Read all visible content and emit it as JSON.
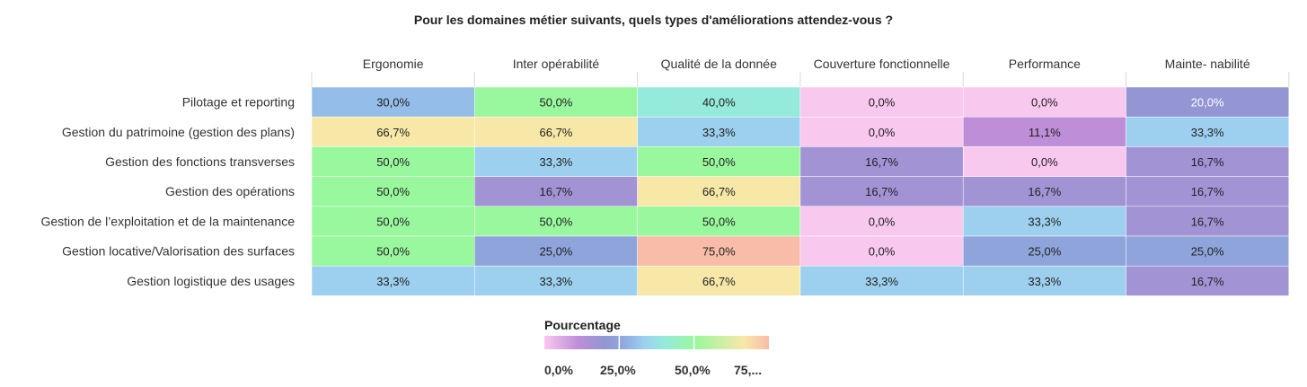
{
  "chart_data": {
    "type": "heatmap",
    "title": "Pour les domaines métier suivants, quels types d'améliorations attendez-vous ?",
    "columns": [
      "Ergonomie",
      "Inter opérabilité",
      "Qualité de la donnée",
      "Couverture fonctionnelle",
      "Performance",
      "Mainte- nabilité"
    ],
    "rows": [
      "Pilotage et reporting",
      "Gestion du patrimoine (gestion des plans)",
      "Gestion des fonctions transverses",
      "Gestion des opérations",
      "Gestion de l’exploitation et de la maintenance",
      "Gestion locative/Valorisation des surfaces",
      "Gestion logistique des usages"
    ],
    "values": [
      [
        30.0,
        50.0,
        40.0,
        0.0,
        0.0,
        20.0
      ],
      [
        66.7,
        66.7,
        33.3,
        0.0,
        11.1,
        33.3
      ],
      [
        50.0,
        33.3,
        50.0,
        16.7,
        0.0,
        16.7
      ],
      [
        50.0,
        16.7,
        66.7,
        16.7,
        16.7,
        16.7
      ],
      [
        50.0,
        50.0,
        50.0,
        0.0,
        33.3,
        16.7
      ],
      [
        50.0,
        25.0,
        75.0,
        0.0,
        25.0,
        25.0
      ],
      [
        33.3,
        33.3,
        66.7,
        33.3,
        33.3,
        16.7
      ]
    ],
    "value_labels": [
      [
        "30,0%",
        "50,0%",
        "40,0%",
        "0,0%",
        "0,0%",
        "20,0%"
      ],
      [
        "66,7%",
        "66,7%",
        "33,3%",
        "0,0%",
        "11,1%",
        "33,3%"
      ],
      [
        "50,0%",
        "33,3%",
        "50,0%",
        "16,7%",
        "0,0%",
        "16,7%"
      ],
      [
        "50,0%",
        "16,7%",
        "66,7%",
        "16,7%",
        "16,7%",
        "16,7%"
      ],
      [
        "50,0%",
        "50,0%",
        "50,0%",
        "0,0%",
        "33,3%",
        "16,7%"
      ],
      [
        "50,0%",
        "25,0%",
        "75,0%",
        "0,0%",
        "25,0%",
        "25,0%"
      ],
      [
        "33,3%",
        "33,3%",
        "66,7%",
        "33,3%",
        "33,3%",
        "16,7%"
      ]
    ],
    "unit": "%",
    "color_scale": {
      "min": 0,
      "max": 75,
      "stops": [
        {
          "value": 0,
          "color": "#f8c8ee"
        },
        {
          "value": 11.1,
          "color": "#bf8ed8"
        },
        {
          "value": 16.7,
          "color": "#a293d5"
        },
        {
          "value": 20,
          "color": "#9396d3"
        },
        {
          "value": 25,
          "color": "#8ea4db"
        },
        {
          "value": 30,
          "color": "#95bde9"
        },
        {
          "value": 33.3,
          "color": "#9dd0ee"
        },
        {
          "value": 40,
          "color": "#95eadb"
        },
        {
          "value": 50,
          "color": "#99f79e"
        },
        {
          "value": 66.7,
          "color": "#f7e8a8"
        },
        {
          "value": 75,
          "color": "#f8bca8"
        }
      ]
    },
    "legend": {
      "title": "Pourcentage",
      "ticks": [
        "0,0%",
        "25,0%",
        "50,0%",
        "75,..."
      ],
      "placement": "bottom-center"
    }
  }
}
